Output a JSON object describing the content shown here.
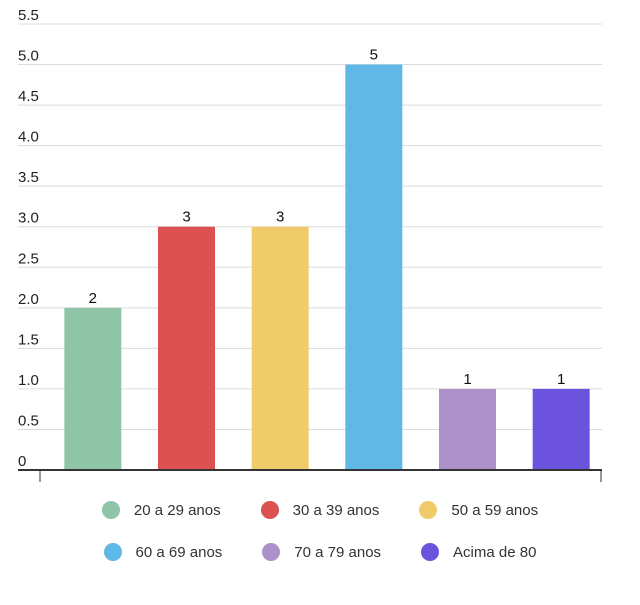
{
  "chart_data": {
    "type": "bar",
    "categories": [
      "20 a 29 anos",
      "30 a 39 anos",
      "50 a 59 anos",
      "60 a 69 anos",
      "70 a 79 anos",
      "Acima de 80"
    ],
    "values": [
      2,
      3,
      3,
      5,
      1,
      1
    ],
    "colors": [
      "#8fc4a7",
      "#dc5252",
      "#efcb6a",
      "#5fb8e5",
      "#ad92c9",
      "#6c53dd"
    ],
    "ylim": [
      0,
      5.5
    ],
    "yticks": [
      "0",
      "0.5",
      "1.0",
      "1.5",
      "2.0",
      "2.5",
      "3.0",
      "3.5",
      "4.0",
      "4.5",
      "5.0",
      "5.5"
    ],
    "title": "",
    "xlabel": "",
    "ylabel": "",
    "grid": true,
    "legend": "bottom",
    "data_labels": [
      "2",
      "3",
      "3",
      "5",
      "1",
      "1"
    ]
  }
}
